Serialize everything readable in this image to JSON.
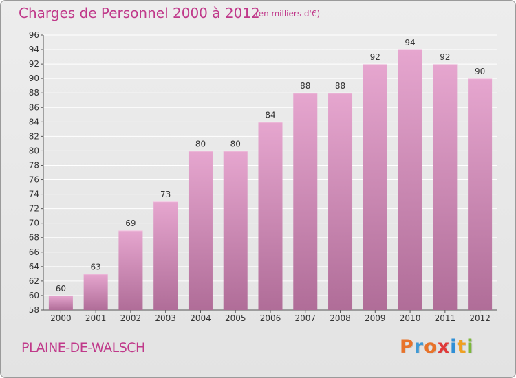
{
  "header": {
    "title": "Charges de Personnel 2000 à 2012",
    "subtitle": "(en milliers d'€)"
  },
  "footer": {
    "place": "PLAINE-DE-WALSCH",
    "logo": "Proxiti",
    "logo_colors": [
      "#e8732a",
      "#3f9ad6",
      "#e8732a",
      "#e03a3a",
      "#2f8fd6",
      "#f0a020",
      "#7cb83a"
    ]
  },
  "colors": {
    "bar_top": "#e6a6cf",
    "bar_bottom": "#b06d98",
    "axis_text": "#333333",
    "grid": "#ffffff"
  },
  "chart_data": {
    "type": "bar",
    "title": "Charges de Personnel 2000 à 2012",
    "subtitle": "(en milliers d'€)",
    "categories": [
      "2000",
      "2001",
      "2002",
      "2003",
      "2004",
      "2005",
      "2006",
      "2007",
      "2008",
      "2009",
      "2010",
      "2011",
      "2012"
    ],
    "values": [
      60,
      63,
      69,
      73,
      80,
      80,
      84,
      88,
      88,
      92,
      94,
      92,
      90
    ],
    "xlabel": "",
    "ylabel": "",
    "ylim": [
      58,
      96
    ],
    "yticks": [
      58,
      60,
      62,
      64,
      66,
      68,
      70,
      72,
      74,
      76,
      78,
      80,
      82,
      84,
      86,
      88,
      90,
      92,
      94,
      96
    ],
    "grid": true,
    "legend": "none"
  }
}
